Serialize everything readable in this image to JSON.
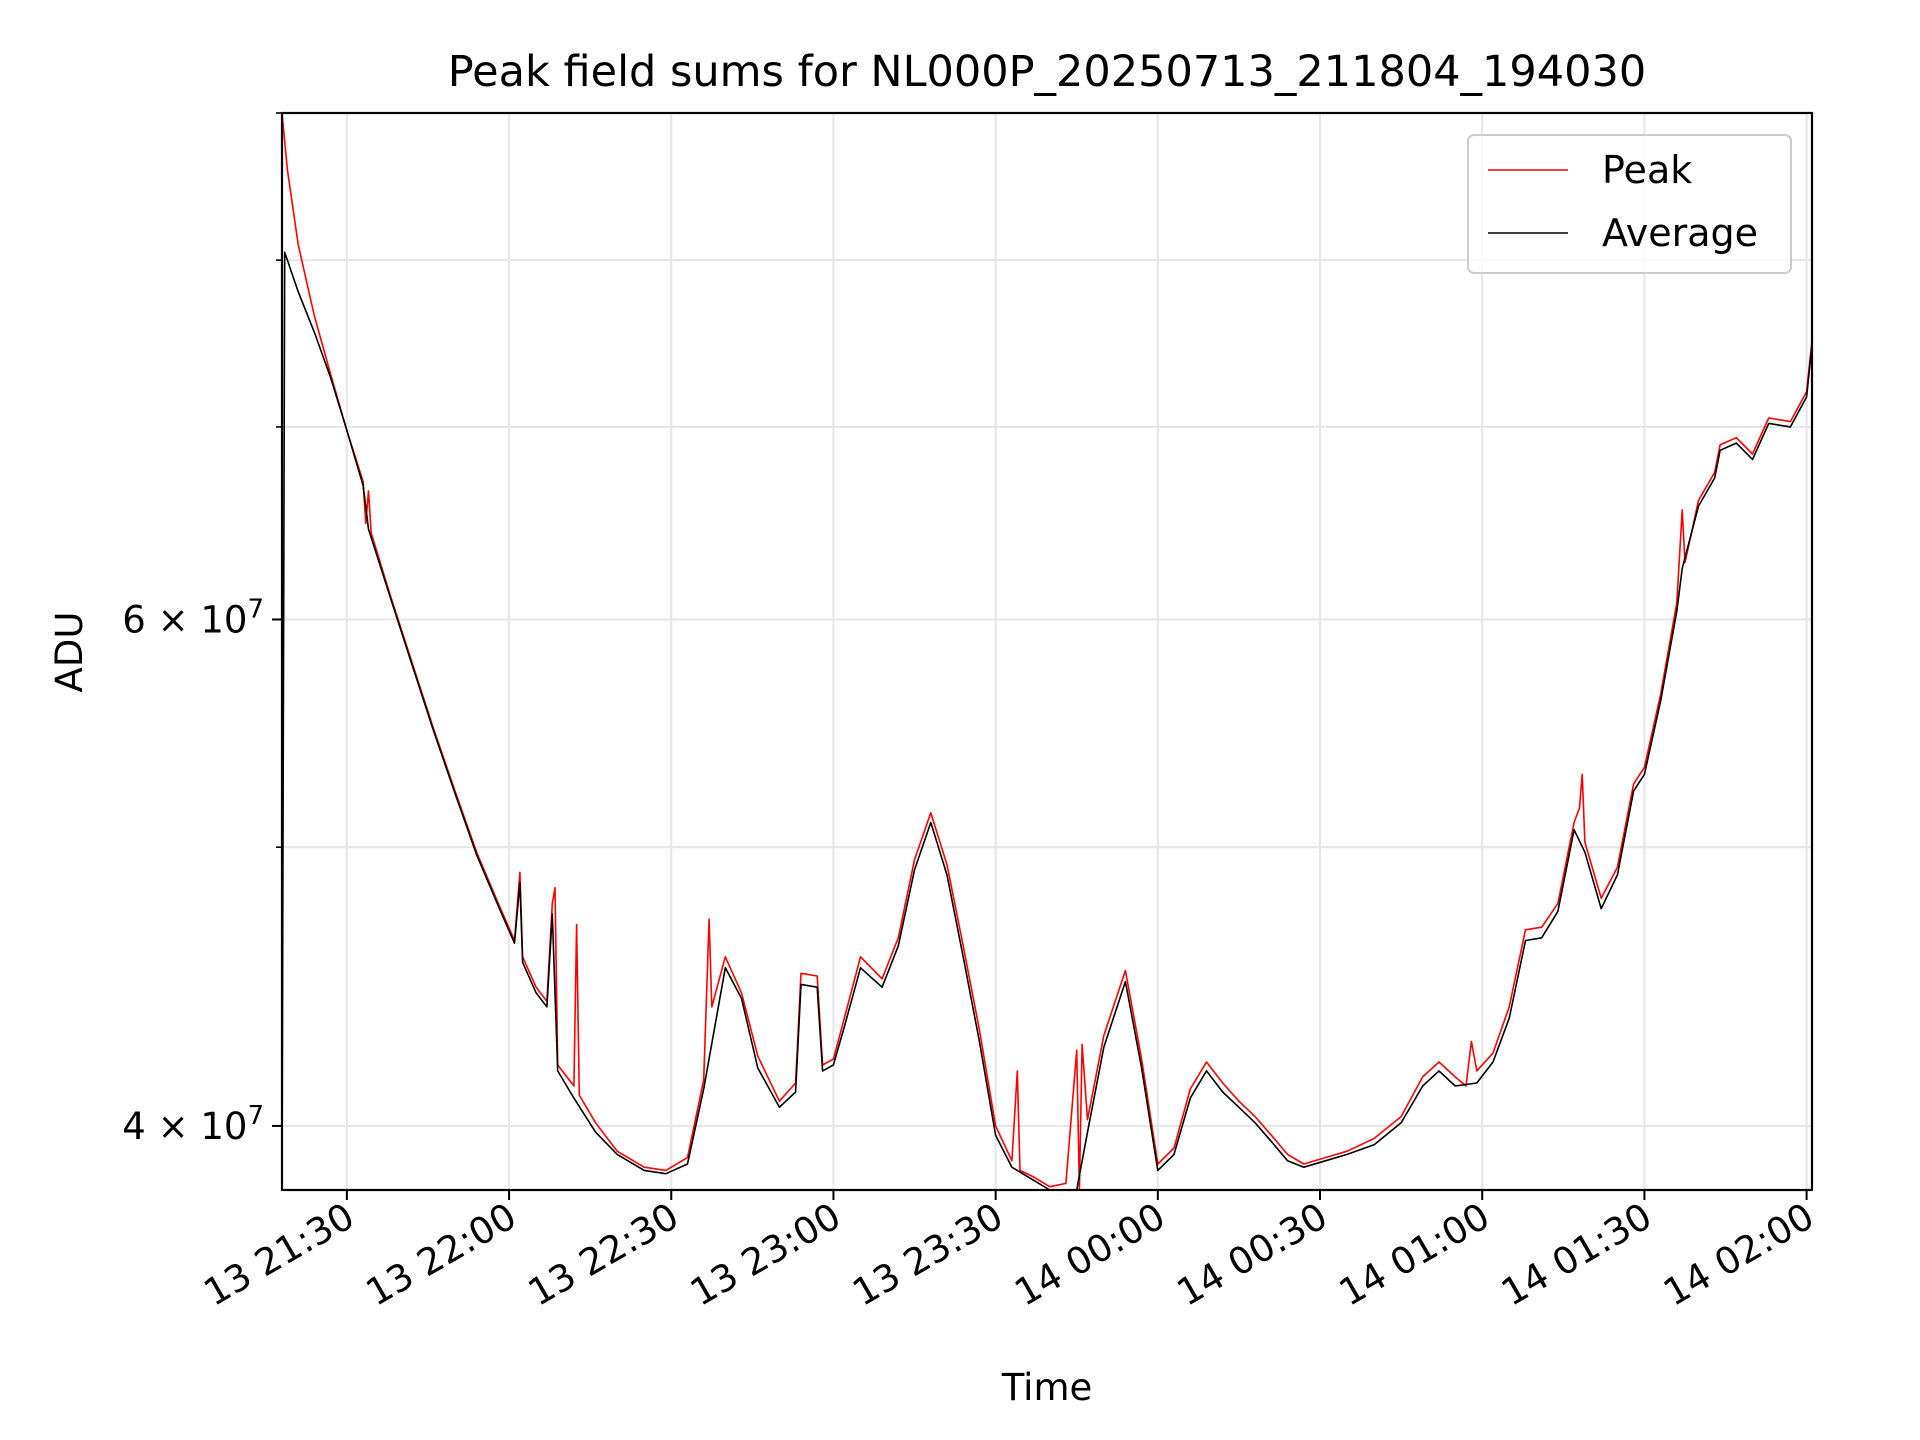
{
  "chart_data": {
    "type": "line",
    "title": "Peak field sums for NL000P_20250713_211804_194030",
    "xlabel": "Time",
    "ylabel": "ADU",
    "x_axis_type": "time",
    "x_ticks": [
      "13 21:30",
      "13 22:00",
      "13 22:30",
      "13 23:00",
      "13 23:30",
      "14 00:00",
      "14 00:30",
      "14 01:00",
      "14 01:30",
      "14 02:00"
    ],
    "x_tick_times": [
      "2025-07-13T21:30",
      "2025-07-13T22:00",
      "2025-07-13T22:30",
      "2025-07-13T23:00",
      "2025-07-13T23:30",
      "2025-07-14T00:00",
      "2025-07-14T00:30",
      "2025-07-14T01:00",
      "2025-07-14T01:30",
      "2025-07-14T02:00"
    ],
    "xlim": [
      "2025-07-13T21:18",
      "2025-07-14T02:01"
    ],
    "y_scale": "log",
    "ylim": [
      38000000,
      90000000
    ],
    "y_major_ticks": [
      {
        "value": 40000000,
        "mantissa": "4",
        "base": "10",
        "exponent": "7"
      },
      {
        "value": 60000000,
        "mantissa": "6",
        "base": "10",
        "exponent": "7"
      }
    ],
    "y_minor_ticks": [
      50000000,
      70000000,
      80000000,
      90000000
    ],
    "grid": true,
    "legend": "upper right",
    "series": [
      {
        "name": "Peak",
        "color": "#ff0000",
        "points": [
          [
            "2025-07-13T21:18",
            90000000
          ],
          [
            "2025-07-13T21:19",
            86000000
          ],
          [
            "2025-07-13T21:21",
            81000000
          ],
          [
            "2025-07-13T21:24",
            76500000
          ],
          [
            "2025-07-13T21:27",
            73000000
          ],
          [
            "2025-07-13T21:30",
            69800000
          ],
          [
            "2025-07-13T21:33",
            67000000
          ],
          [
            "2025-07-13T21:33:30",
            64800000
          ],
          [
            "2025-07-13T21:34",
            66500000
          ],
          [
            "2025-07-13T21:34:30",
            64300000
          ],
          [
            "2025-07-13T21:38",
            61200000
          ],
          [
            "2025-07-13T21:42",
            58000000
          ],
          [
            "2025-07-13T21:46",
            55000000
          ],
          [
            "2025-07-13T21:50",
            52300000
          ],
          [
            "2025-07-13T21:54",
            49800000
          ],
          [
            "2025-07-13T21:58",
            47800000
          ],
          [
            "2025-07-13T22:01",
            46400000
          ],
          [
            "2025-07-13T22:02",
            49000000
          ],
          [
            "2025-07-13T22:02:30",
            45800000
          ],
          [
            "2025-07-13T22:05",
            44700000
          ],
          [
            "2025-07-13T22:07",
            44200000
          ],
          [
            "2025-07-13T22:08",
            47800000
          ],
          [
            "2025-07-13T22:08:30",
            48400000
          ],
          [
            "2025-07-13T22:09",
            42000000
          ],
          [
            "2025-07-13T22:12",
            41300000
          ],
          [
            "2025-07-13T22:12:30",
            47000000
          ],
          [
            "2025-07-13T22:13",
            41000000
          ],
          [
            "2025-07-13T22:16",
            40100000
          ],
          [
            "2025-07-13T22:20",
            39200000
          ],
          [
            "2025-07-13T22:25",
            38700000
          ],
          [
            "2025-07-13T22:29",
            38600000
          ],
          [
            "2025-07-13T22:33",
            39000000
          ],
          [
            "2025-07-13T22:36",
            41500000
          ],
          [
            "2025-07-13T22:37",
            47200000
          ],
          [
            "2025-07-13T22:37:30",
            44000000
          ],
          [
            "2025-07-13T22:40",
            45800000
          ],
          [
            "2025-07-13T22:43",
            44500000
          ],
          [
            "2025-07-13T22:46",
            42300000
          ],
          [
            "2025-07-13T22:50",
            40800000
          ],
          [
            "2025-07-13T22:53",
            41400000
          ],
          [
            "2025-07-13T22:54",
            45200000
          ],
          [
            "2025-07-13T22:57",
            45100000
          ],
          [
            "2025-07-13T22:58",
            42000000
          ],
          [
            "2025-07-13T23:00",
            42200000
          ],
          [
            "2025-07-13T23:02",
            43600000
          ],
          [
            "2025-07-13T23:05",
            45800000
          ],
          [
            "2025-07-13T23:09",
            45000000
          ],
          [
            "2025-07-13T23:12",
            46500000
          ],
          [
            "2025-07-13T23:15",
            49500000
          ],
          [
            "2025-07-13T23:18",
            51400000
          ],
          [
            "2025-07-13T23:21",
            49300000
          ],
          [
            "2025-07-13T23:24",
            46200000
          ],
          [
            "2025-07-13T23:27",
            43200000
          ],
          [
            "2025-07-13T23:30",
            40000000
          ],
          [
            "2025-07-13T23:33",
            38900000
          ],
          [
            "2025-07-13T23:34",
            41800000
          ],
          [
            "2025-07-13T23:34:30",
            38600000
          ],
          [
            "2025-07-13T23:37",
            38400000
          ],
          [
            "2025-07-13T23:40",
            38100000
          ],
          [
            "2025-07-13T23:43",
            38200000
          ],
          [
            "2025-07-13T23:45",
            42500000
          ],
          [
            "2025-07-13T23:45:30",
            38000000
          ],
          [
            "2025-07-13T23:46",
            42700000
          ],
          [
            "2025-07-13T23:47",
            40200000
          ],
          [
            "2025-07-13T23:50",
            43000000
          ],
          [
            "2025-07-13T23:54",
            45300000
          ],
          [
            "2025-07-13T23:57",
            42200000
          ],
          [
            "2025-07-14T00:00",
            38800000
          ],
          [
            "2025-07-14T00:03",
            39300000
          ],
          [
            "2025-07-14T00:06",
            41200000
          ],
          [
            "2025-07-14T00:09",
            42100000
          ],
          [
            "2025-07-14T00:12",
            41400000
          ],
          [
            "2025-07-14T00:15",
            40800000
          ],
          [
            "2025-07-14T00:18",
            40300000
          ],
          [
            "2025-07-14T00:21",
            39700000
          ],
          [
            "2025-07-14T00:24",
            39100000
          ],
          [
            "2025-07-14T00:27",
            38800000
          ],
          [
            "2025-07-14T00:31",
            39000000
          ],
          [
            "2025-07-14T00:35",
            39200000
          ],
          [
            "2025-07-14T00:40",
            39600000
          ],
          [
            "2025-07-14T00:45",
            40300000
          ],
          [
            "2025-07-14T00:49",
            41600000
          ],
          [
            "2025-07-14T00:52",
            42100000
          ],
          [
            "2025-07-14T00:55",
            41600000
          ],
          [
            "2025-07-14T00:57",
            41300000
          ],
          [
            "2025-07-14T00:58",
            42800000
          ],
          [
            "2025-07-14T00:59",
            41800000
          ],
          [
            "2025-07-14T01:02",
            42400000
          ],
          [
            "2025-07-14T01:05",
            44000000
          ],
          [
            "2025-07-14T01:08",
            46800000
          ],
          [
            "2025-07-14T01:11",
            46900000
          ],
          [
            "2025-07-14T01:14",
            47800000
          ],
          [
            "2025-07-14T01:17",
            51000000
          ],
          [
            "2025-07-14T01:18",
            51600000
          ],
          [
            "2025-07-14T01:18:30",
            53000000
          ],
          [
            "2025-07-14T01:19",
            50200000
          ],
          [
            "2025-07-14T01:22",
            48000000
          ],
          [
            "2025-07-14T01:25",
            49200000
          ],
          [
            "2025-07-14T01:28",
            52600000
          ],
          [
            "2025-07-14T01:30",
            53300000
          ],
          [
            "2025-07-14T01:33",
            56500000
          ],
          [
            "2025-07-14T01:36",
            60800000
          ],
          [
            "2025-07-14T01:37",
            65500000
          ],
          [
            "2025-07-14T01:37:30",
            62800000
          ],
          [
            "2025-07-14T01:40",
            66000000
          ],
          [
            "2025-07-14T01:43",
            67500000
          ],
          [
            "2025-07-14T01:44",
            69000000
          ],
          [
            "2025-07-14T01:47",
            69400000
          ],
          [
            "2025-07-14T01:50",
            68500000
          ],
          [
            "2025-07-14T01:53",
            70500000
          ],
          [
            "2025-07-14T01:57",
            70300000
          ],
          [
            "2025-07-14T02:00",
            72000000
          ],
          [
            "2025-07-14T02:01",
            75000000
          ]
        ]
      },
      {
        "name": "Average",
        "color": "#000000",
        "points": [
          [
            "2025-07-13T21:18",
            38000000
          ],
          [
            "2025-07-13T21:18:30",
            80500000
          ],
          [
            "2025-07-13T21:21",
            78000000
          ],
          [
            "2025-07-13T21:24",
            75500000
          ],
          [
            "2025-07-13T21:27",
            72800000
          ],
          [
            "2025-07-13T21:30",
            69800000
          ],
          [
            "2025-07-13T21:33",
            66800000
          ],
          [
            "2025-07-13T21:34",
            64500000
          ],
          [
            "2025-07-13T21:38",
            61100000
          ],
          [
            "2025-07-13T21:42",
            57900000
          ],
          [
            "2025-07-13T21:46",
            54900000
          ],
          [
            "2025-07-13T21:50",
            52200000
          ],
          [
            "2025-07-13T21:54",
            49700000
          ],
          [
            "2025-07-13T21:58",
            47700000
          ],
          [
            "2025-07-13T22:01",
            46300000
          ],
          [
            "2025-07-13T22:02",
            48600000
          ],
          [
            "2025-07-13T22:02:30",
            45600000
          ],
          [
            "2025-07-13T22:05",
            44500000
          ],
          [
            "2025-07-13T22:07",
            44000000
          ],
          [
            "2025-07-13T22:08",
            47400000
          ],
          [
            "2025-07-13T22:09",
            41800000
          ],
          [
            "2025-07-13T22:12",
            40900000
          ],
          [
            "2025-07-13T22:16",
            39800000
          ],
          [
            "2025-07-13T22:20",
            39100000
          ],
          [
            "2025-07-13T22:25",
            38600000
          ],
          [
            "2025-07-13T22:29",
            38500000
          ],
          [
            "2025-07-13T22:33",
            38800000
          ],
          [
            "2025-07-13T22:36",
            41200000
          ],
          [
            "2025-07-13T22:40",
            45400000
          ],
          [
            "2025-07-13T22:43",
            44300000
          ],
          [
            "2025-07-13T22:46",
            41900000
          ],
          [
            "2025-07-13T22:50",
            40600000
          ],
          [
            "2025-07-13T22:53",
            41100000
          ],
          [
            "2025-07-13T22:54",
            44800000
          ],
          [
            "2025-07-13T22:57",
            44700000
          ],
          [
            "2025-07-13T22:58",
            41800000
          ],
          [
            "2025-07-13T23:00",
            42000000
          ],
          [
            "2025-07-13T23:02",
            43300000
          ],
          [
            "2025-07-13T23:05",
            45400000
          ],
          [
            "2025-07-13T23:09",
            44700000
          ],
          [
            "2025-07-13T23:12",
            46200000
          ],
          [
            "2025-07-13T23:15",
            49100000
          ],
          [
            "2025-07-13T23:18",
            51000000
          ],
          [
            "2025-07-13T23:21",
            48900000
          ],
          [
            "2025-07-13T23:24",
            45800000
          ],
          [
            "2025-07-13T23:27",
            42800000
          ],
          [
            "2025-07-13T23:30",
            39700000
          ],
          [
            "2025-07-13T23:33",
            38700000
          ],
          [
            "2025-07-13T23:37",
            38300000
          ],
          [
            "2025-07-13T23:40",
            38000000
          ],
          [
            "2025-07-13T23:43",
            38000000
          ],
          [
            "2025-07-13T23:45",
            37900000
          ],
          [
            "2025-07-13T23:47",
            39800000
          ],
          [
            "2025-07-13T23:50",
            42600000
          ],
          [
            "2025-07-13T23:54",
            44900000
          ],
          [
            "2025-07-13T23:57",
            41900000
          ],
          [
            "2025-07-14T00:00",
            38600000
          ],
          [
            "2025-07-14T00:03",
            39100000
          ],
          [
            "2025-07-14T00:06",
            40900000
          ],
          [
            "2025-07-14T00:09",
            41800000
          ],
          [
            "2025-07-14T00:12",
            41100000
          ],
          [
            "2025-07-14T00:15",
            40600000
          ],
          [
            "2025-07-14T00:18",
            40100000
          ],
          [
            "2025-07-14T00:21",
            39500000
          ],
          [
            "2025-07-14T00:24",
            38900000
          ],
          [
            "2025-07-14T00:27",
            38700000
          ],
          [
            "2025-07-14T00:31",
            38900000
          ],
          [
            "2025-07-14T00:35",
            39100000
          ],
          [
            "2025-07-14T00:40",
            39400000
          ],
          [
            "2025-07-14T00:45",
            40100000
          ],
          [
            "2025-07-14T00:49",
            41300000
          ],
          [
            "2025-07-14T00:52",
            41800000
          ],
          [
            "2025-07-14T00:55",
            41300000
          ],
          [
            "2025-07-14T00:59",
            41400000
          ],
          [
            "2025-07-14T01:02",
            42100000
          ],
          [
            "2025-07-14T01:05",
            43600000
          ],
          [
            "2025-07-14T01:08",
            46400000
          ],
          [
            "2025-07-14T01:11",
            46500000
          ],
          [
            "2025-07-14T01:14",
            47500000
          ],
          [
            "2025-07-14T01:17",
            50700000
          ],
          [
            "2025-07-14T01:19",
            49800000
          ],
          [
            "2025-07-14T01:22",
            47600000
          ],
          [
            "2025-07-14T01:25",
            48900000
          ],
          [
            "2025-07-14T01:28",
            52300000
          ],
          [
            "2025-07-14T01:30",
            53000000
          ],
          [
            "2025-07-14T01:33",
            56200000
          ],
          [
            "2025-07-14T01:36",
            60400000
          ],
          [
            "2025-07-14T01:37",
            62500000
          ],
          [
            "2025-07-14T01:40",
            65700000
          ],
          [
            "2025-07-14T01:43",
            67200000
          ],
          [
            "2025-07-14T01:44",
            68700000
          ],
          [
            "2025-07-14T01:47",
            69100000
          ],
          [
            "2025-07-14T01:50",
            68200000
          ],
          [
            "2025-07-14T01:53",
            70200000
          ],
          [
            "2025-07-14T01:57",
            70000000
          ],
          [
            "2025-07-14T02:00",
            71700000
          ],
          [
            "2025-07-14T02:01",
            74800000
          ]
        ]
      }
    ]
  }
}
